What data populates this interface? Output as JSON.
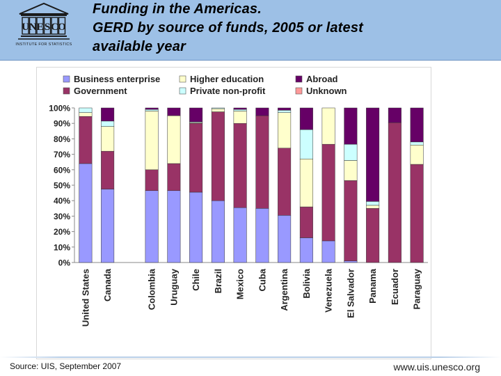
{
  "header": {
    "title_lines": [
      "Funding in the Americas.",
      "GERD by source of funds, 2005 or latest",
      "available year"
    ],
    "logo_text": "UNESCO",
    "logo_subtext": "INSTITUTE FOR STATISTICS"
  },
  "footer": {
    "source": "Source: UIS, September 2007",
    "website": "www.uis.unesco.org"
  },
  "chart_data": {
    "type": "bar",
    "stacked": true,
    "percent": true,
    "categories": [
      "United States",
      "Canada",
      "Colombia",
      "Uruguay",
      "Chile",
      "Brazil",
      "Mexico",
      "Cuba",
      "Argentina",
      "Bolivia",
      "Venezuela",
      "El Salvador",
      "Panama",
      "Ecuador",
      "Paraguay"
    ],
    "series": [
      {
        "name": "Business enterprise",
        "color": "#9999ff",
        "values": [
          64,
          47.5,
          46.5,
          46.5,
          45.5,
          40,
          35.5,
          35,
          30.5,
          16,
          14,
          1,
          0,
          0,
          0
        ]
      },
      {
        "name": "Government",
        "color": "#993366",
        "values": [
          30.5,
          24.5,
          13.5,
          17.5,
          44.5,
          57.5,
          54.5,
          60,
          43.5,
          20,
          62.5,
          52,
          35,
          90.5,
          63.5
        ]
      },
      {
        "name": "Higher education",
        "color": "#ffffcc",
        "values": [
          2.5,
          16,
          38,
          31,
          0.5,
          2,
          8,
          0,
          23,
          31,
          23.5,
          13,
          2,
          0,
          12.5
        ]
      },
      {
        "name": "Private non-profit",
        "color": "#ccffff",
        "values": [
          3,
          3.5,
          1,
          0,
          0.5,
          0.5,
          1,
          0,
          1.5,
          19,
          0,
          10.5,
          2.5,
          0,
          2
        ]
      },
      {
        "name": "Abroad",
        "color": "#660066",
        "values": [
          0,
          8.5,
          1,
          5,
          9,
          0,
          1,
          5,
          1.5,
          14,
          0,
          23.5,
          60.5,
          9.5,
          22
        ]
      },
      {
        "name": "Unknown",
        "color": "#ff9999",
        "values": [
          0,
          0,
          0,
          0,
          0,
          0,
          0,
          0,
          0,
          0,
          0,
          0,
          0,
          0,
          0
        ]
      }
    ],
    "gap_after_index": 1,
    "yticks": [
      "0%",
      "10%",
      "20%",
      "30%",
      "40%",
      "50%",
      "60%",
      "70%",
      "80%",
      "90%",
      "100%"
    ],
    "ylim": [
      0,
      100
    ],
    "legend_position": "top",
    "grid": false
  }
}
